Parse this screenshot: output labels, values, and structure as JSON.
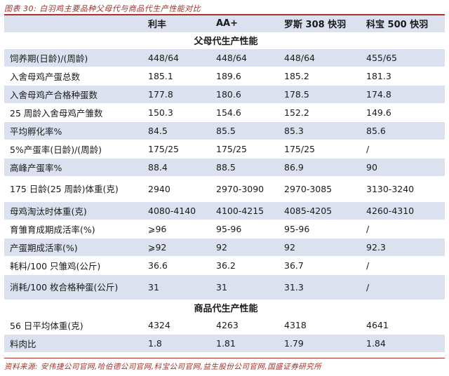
{
  "caption": "图表 30: 白羽鸡主要品种父母代与商品代生产性能对比",
  "headers": [
    "",
    "利丰",
    "AA+",
    "罗斯 308 快羽",
    "科宝 500 快羽"
  ],
  "section_parent": "父母代生产性能",
  "parent_rows": [
    [
      "饲养期(日龄)/(周龄)",
      "448/64",
      "448/64",
      "448/64",
      "455/65"
    ],
    [
      "入舍母鸡产蛋总数",
      "185.1",
      "189.6",
      "185.2",
      "181.3"
    ],
    [
      "入舍母鸡产合格种蛋数",
      "177.8",
      "180.6",
      "178.5",
      "174.8"
    ],
    [
      "25 周龄入舍母鸡产雏数",
      "150.3",
      "154.6",
      "152.2",
      "149.6"
    ],
    [
      "平均孵化率%",
      "84.5",
      "85.5",
      "85.3",
      "85.6"
    ],
    [
      "5%产蛋率(日龄)/(周龄)",
      "175/25",
      "175/25",
      "175/25",
      "/"
    ],
    [
      "高峰产蛋率%",
      "88.4",
      "88.5",
      "86.9",
      "90"
    ],
    [
      "175 日龄(25 周龄)体重(克)",
      "2940",
      "2970-3090",
      "2970-3085",
      "3130-3240"
    ],
    [
      "母鸡淘汰时体重(克)",
      "4080-4140",
      "4100-4215",
      "4085-4205",
      "4260-4310"
    ],
    [
      "育雏育成期成活率(%)",
      "⩾96",
      "95-96",
      "95-96",
      "/"
    ],
    [
      "产蛋期成活率(%)",
      "⩾92",
      "92",
      "92",
      "92.3"
    ],
    [
      "耗料/100 只雏鸡(公斤)",
      "36.6",
      "36.2",
      "36.7",
      "/"
    ],
    [
      "消耗/100 枚合格种蛋(公斤)",
      "31",
      "31",
      "31.3",
      "/"
    ]
  ],
  "section_commercial": "商品代生产性能",
  "commercial_rows": [
    [
      "56 日平均体重(克)",
      "4324",
      "4263",
      "4318",
      "4641"
    ],
    [
      "料肉比",
      "1.8",
      "1.81",
      "1.79",
      "1.84"
    ]
  ],
  "source": "资料来源: 安伟捷公司官网,哈伯德公司官网,科宝公司官网,益生股份公司官网,国盛证券研究所",
  "colors": {
    "accent": "#b0302a",
    "shade": "#dbe1ef"
  }
}
